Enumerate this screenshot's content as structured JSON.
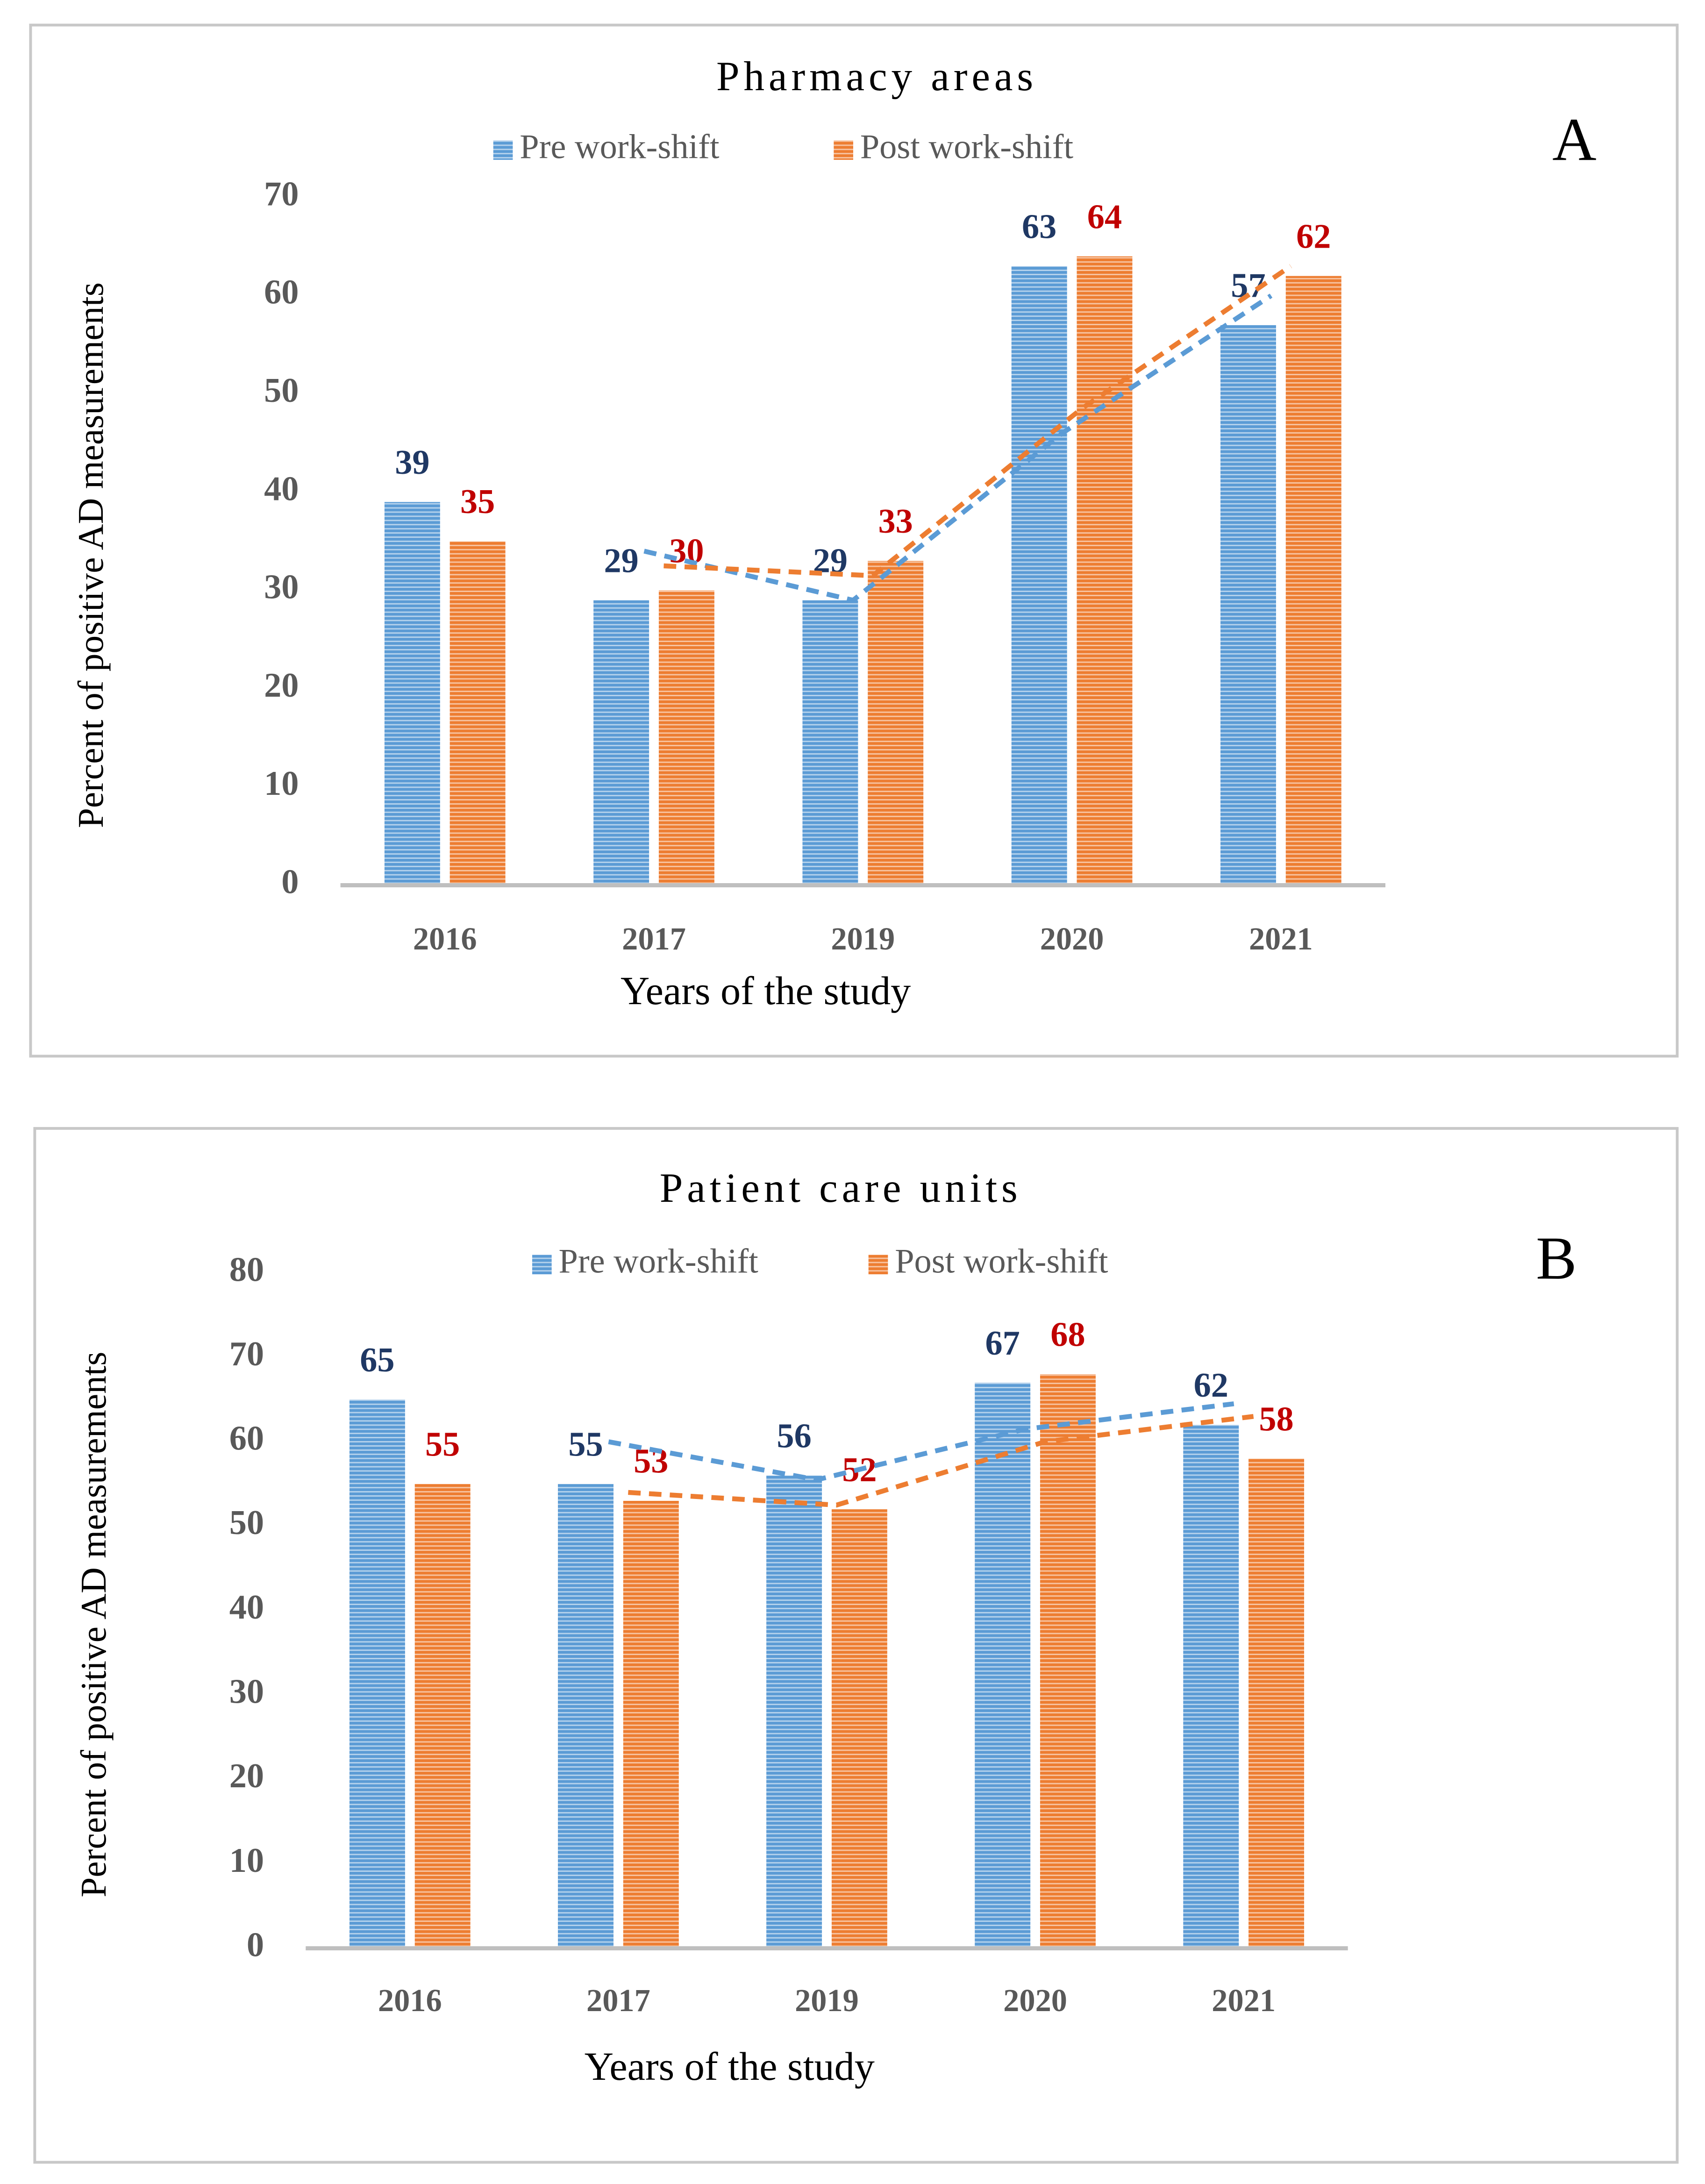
{
  "chart_data": [
    {
      "type": "bar",
      "title": "Pharmacy areas",
      "panel_label": "A",
      "x_label": "Years of the study",
      "y_label": "Percent of positive AD measurements",
      "categories": [
        "2016",
        "2017",
        "2019",
        "2020",
        "2021"
      ],
      "series": [
        {
          "name": "Pre work-shift",
          "color": "#5b9bd5",
          "label_color": "#1f3864",
          "values": [
            39,
            29,
            29,
            63,
            57
          ]
        },
        {
          "name": "Post work-shift",
          "color": "#ed7d31",
          "label_color": "#c00000",
          "values": [
            35,
            30,
            33,
            64,
            62
          ]
        }
      ],
      "ylim": [
        0,
        70
      ],
      "yticks": [
        0,
        10,
        20,
        30,
        40,
        50,
        60,
        70
      ],
      "grid": false,
      "legend": "top",
      "trendline": "moving_average",
      "trendline_period": 2
    },
    {
      "type": "bar",
      "title": "Patient care units",
      "panel_label": "B",
      "x_label": "Years of the study",
      "y_label": "Percent of positive AD measurements",
      "categories": [
        "2016",
        "2017",
        "2019",
        "2020",
        "2021"
      ],
      "series": [
        {
          "name": "Pre work-shift",
          "color": "#5b9bd5",
          "label_color": "#1f3864",
          "values": [
            65,
            55,
            56,
            67,
            62
          ]
        },
        {
          "name": "Post work-shift",
          "color": "#ed7d31",
          "label_color": "#c00000",
          "values": [
            55,
            53,
            52,
            68,
            58
          ]
        }
      ],
      "ylim": [
        0,
        80
      ],
      "yticks": [
        0,
        10,
        20,
        30,
        40,
        50,
        60,
        70,
        80
      ],
      "grid": false,
      "legend": "top",
      "trendline": "moving_average",
      "trendline_period": 2
    }
  ]
}
